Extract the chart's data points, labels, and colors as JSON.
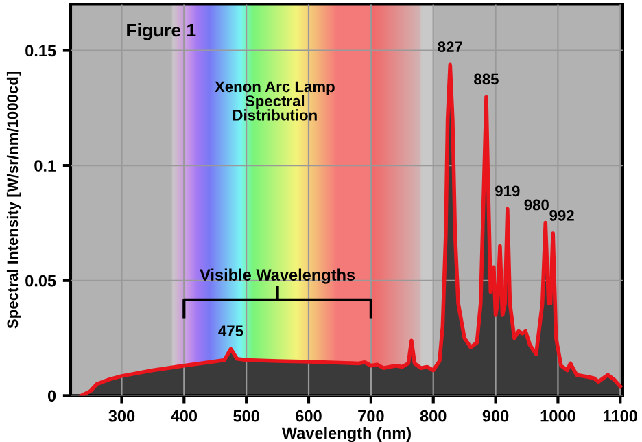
{
  "chart_data": {
    "type": "area",
    "xlabel": "Wavelength (nm)",
    "ylabel": "Spectral Intensity [W/sr/nm/1000cd]",
    "x": [
      235,
      250,
      260,
      280,
      300,
      350,
      400,
      450,
      465,
      475,
      485,
      500,
      550,
      600,
      650,
      680,
      690,
      700,
      710,
      720,
      740,
      750,
      760,
      765,
      770,
      780,
      790,
      800,
      810,
      815,
      820,
      823,
      827,
      831,
      835,
      840,
      850,
      860,
      870,
      876,
      880,
      885,
      889,
      892,
      897,
      900,
      903,
      907,
      911,
      915,
      919,
      923,
      930,
      937,
      943,
      948,
      955,
      965,
      975,
      980,
      985,
      988,
      992,
      997,
      1005,
      1015,
      1020,
      1030,
      1050,
      1058,
      1065,
      1080,
      1090,
      1100
    ],
    "series": [
      {
        "color": "#e8161c",
        "values": [
          0,
          0.002,
          0.005,
          0.007,
          0.0085,
          0.011,
          0.013,
          0.0149,
          0.0155,
          0.0203,
          0.016,
          0.0155,
          0.015,
          0.0147,
          0.0143,
          0.014,
          0.0145,
          0.013,
          0.0135,
          0.012,
          0.013,
          0.0125,
          0.014,
          0.0239,
          0.014,
          0.012,
          0.0125,
          0.011,
          0.015,
          0.03,
          0.07,
          0.12,
          0.1438,
          0.12,
          0.07,
          0.04,
          0.025,
          0.021,
          0.023,
          0.04,
          0.08,
          0.1297,
          0.08,
          0.045,
          0.0558,
          0.035,
          0.04,
          0.065,
          0.035,
          0.04,
          0.0811,
          0.04,
          0.025,
          0.028,
          0.027,
          0.028,
          0.022,
          0.018,
          0.04,
          0.0751,
          0.04,
          0.04,
          0.0705,
          0.025,
          0.013,
          0.011,
          0.014,
          0.009,
          0.008,
          0.0075,
          0.006,
          0.009,
          0.007,
          0.004
        ]
      }
    ],
    "xlim": [
      218,
      1104
    ],
    "ylim": [
      0,
      0.17
    ],
    "xticks": [
      300,
      400,
      500,
      600,
      700,
      800,
      900,
      1000,
      1100
    ],
    "yticks": [
      0,
      0.05,
      0.1,
      0.15
    ],
    "grid": true,
    "bands": [
      {
        "axis": "x",
        "from": 400,
        "to": 700,
        "label": "Visible Wavelengths"
      }
    ],
    "annotations": [
      "Figure 1",
      "Xenon Arc Lamp\nSpectral\nDistribution",
      {
        "text": "475",
        "x": 475,
        "y": 0.0203
      },
      {
        "text": "827",
        "x": 827,
        "y": 0.1438
      },
      {
        "text": "885",
        "x": 885,
        "y": 0.1297
      },
      {
        "text": "919",
        "x": 919,
        "y": 0.0811
      },
      {
        "text": "980",
        "x": 980,
        "y": 0.0751
      },
      {
        "text": "992",
        "x": 992,
        "y": 0.0705
      }
    ]
  }
}
